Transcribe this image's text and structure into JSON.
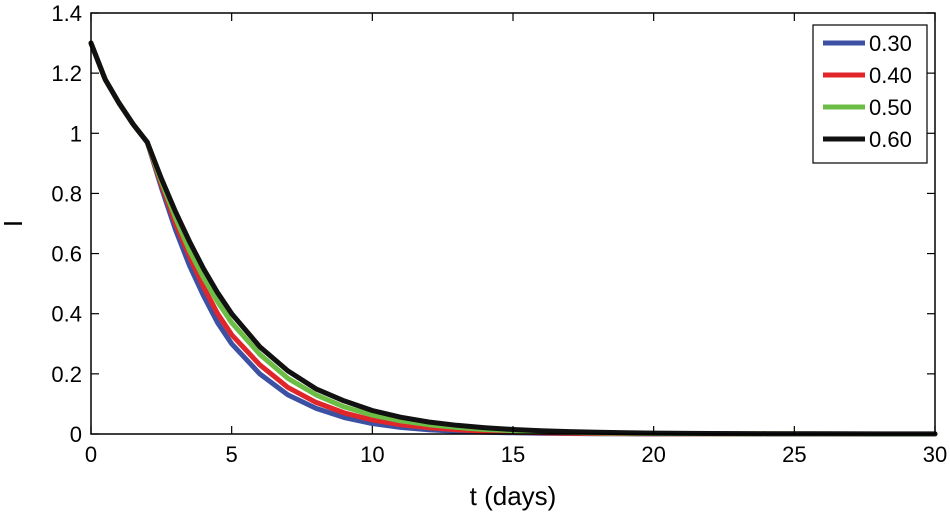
{
  "chart_data": {
    "type": "line",
    "title": "",
    "xlabel": "t (days)",
    "ylabel": "I",
    "xlim": [
      0,
      30
    ],
    "ylim": [
      0,
      1.4
    ],
    "xticks": [
      0,
      5,
      10,
      15,
      20,
      25,
      30
    ],
    "xtick_labels": [
      "0",
      "5",
      "10",
      "15",
      "20",
      "25",
      "30"
    ],
    "yticks": [
      0,
      0.2,
      0.4,
      0.6,
      0.8,
      1.0,
      1.2,
      1.4
    ],
    "ytick_labels": [
      "0",
      "0.2",
      "0.4",
      "0.6",
      "0.8",
      "1",
      "1.2",
      "1.4"
    ],
    "grid": false,
    "legend_position": "top-right",
    "x": [
      0,
      0.5,
      1,
      1.5,
      2,
      2.5,
      3,
      3.5,
      4,
      4.5,
      5,
      6,
      7,
      8,
      9,
      10,
      11,
      12,
      13,
      14,
      15,
      16,
      17,
      18,
      19,
      20,
      22,
      24,
      26,
      28,
      30
    ],
    "series": [
      {
        "name": "0.30",
        "color": "#3c51a3",
        "values": [
          1.3,
          1.18,
          1.1,
          1.03,
          0.97,
          0.82,
          0.68,
          0.56,
          0.46,
          0.37,
          0.3,
          0.2,
          0.13,
          0.085,
          0.055,
          0.035,
          0.022,
          0.014,
          0.009,
          0.006,
          0.004,
          0.0025,
          0.0016,
          0.001,
          0.0006,
          0.0004,
          0.0002,
          0.0001,
          5e-05,
          2e-05,
          1e-05
        ]
      },
      {
        "name": "0.40",
        "color": "#e0262b",
        "values": [
          1.3,
          1.18,
          1.1,
          1.03,
          0.97,
          0.83,
          0.7,
          0.59,
          0.49,
          0.4,
          0.33,
          0.23,
          0.155,
          0.105,
          0.07,
          0.047,
          0.031,
          0.021,
          0.014,
          0.009,
          0.006,
          0.004,
          0.0027,
          0.0018,
          0.0012,
          0.0008,
          0.0004,
          0.0002,
          0.0001,
          5e-05,
          2e-05
        ]
      },
      {
        "name": "0.50",
        "color": "#6cbd45",
        "values": [
          1.3,
          1.18,
          1.1,
          1.03,
          0.97,
          0.84,
          0.72,
          0.61,
          0.52,
          0.44,
          0.37,
          0.265,
          0.185,
          0.13,
          0.09,
          0.063,
          0.044,
          0.031,
          0.022,
          0.015,
          0.011,
          0.0075,
          0.0052,
          0.0036,
          0.0025,
          0.0017,
          0.0008,
          0.0004,
          0.0002,
          0.0001,
          5e-05
        ]
      },
      {
        "name": "0.60",
        "color": "#111111",
        "values": [
          1.3,
          1.18,
          1.1,
          1.03,
          0.97,
          0.85,
          0.74,
          0.64,
          0.55,
          0.47,
          0.4,
          0.29,
          0.21,
          0.15,
          0.11,
          0.078,
          0.056,
          0.04,
          0.029,
          0.021,
          0.015,
          0.011,
          0.008,
          0.006,
          0.0042,
          0.003,
          0.0016,
          0.0009,
          0.0005,
          0.0003,
          0.0002
        ]
      }
    ]
  }
}
